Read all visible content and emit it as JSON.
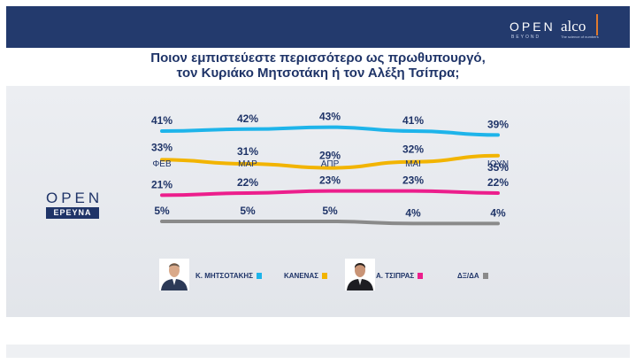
{
  "brand": {
    "open": "OPEN",
    "beyond": "BEYOND",
    "alco": "alco",
    "tagline": "The science of numbers"
  },
  "title_line1": "Ποιον εμπιστεύεστε περισσότερο ως πρωθυπουργό,",
  "title_line2": "τον Κυριάκο Μητσοτάκη ή τον Αλέξη Τσίπρα;",
  "open_logo": {
    "word": "OPEN",
    "badge": "ΕΡΕΥΝΑ"
  },
  "chart_data": {
    "type": "line",
    "title": "Ποιον εμπιστεύεστε περισσότερο ως πρωθυπουργό, τον Κυριάκο Μητσοτάκη ή τον Αλέξη Τσίπρα;",
    "categories": [
      "ΦΕΒ",
      "ΜΑΡ",
      "ΑΠΡ",
      "ΜΑΙ",
      "ΙΟΥΝ"
    ],
    "series": [
      {
        "name": "Κ. ΜΗΤΣΟΤΑΚΗΣ",
        "color": "#1eb4ea",
        "values": [
          41,
          42,
          43,
          41,
          39
        ],
        "labels": [
          "41%",
          "42%",
          "43%",
          "41%",
          "39%"
        ]
      },
      {
        "name": "ΚΑΝΕΝΑΣ",
        "color": "#f2b400",
        "values": [
          33,
          31,
          29,
          32,
          35
        ],
        "labels": [
          "33%",
          "31%",
          "29%",
          "32%",
          "35%"
        ]
      },
      {
        "name": "Α. ΤΣΙΠΡΑΣ",
        "color": "#ec1e8c",
        "values": [
          21,
          22,
          23,
          23,
          22
        ],
        "labels": [
          "21%",
          "22%",
          "23%",
          "23%",
          "22%"
        ]
      },
      {
        "name": "ΔΞ/ΔΑ",
        "color": "#8a8a8a",
        "values": [
          5,
          5,
          5,
          4,
          4
        ],
        "labels": [
          "5%",
          "5%",
          "5%",
          "4%",
          "4%"
        ]
      }
    ],
    "xlabel": "",
    "ylabel": "",
    "grid": false,
    "legend": "bottom"
  }
}
